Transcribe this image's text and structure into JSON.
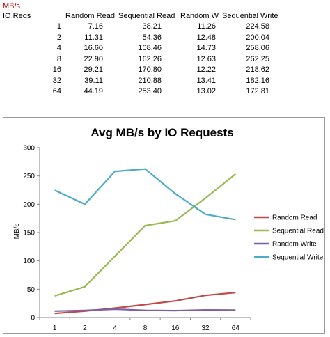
{
  "table": {
    "units_label": "MB/s",
    "header": [
      "IO Reqs",
      "Random Read",
      "Sequential Read",
      "Random Wr",
      "Sequential Write"
    ],
    "rows": [
      [
        "1",
        "7.16",
        "38.21",
        "11.26",
        "224.58"
      ],
      [
        "2",
        "11.31",
        "54.36",
        "12.48",
        "200.04"
      ],
      [
        "4",
        "16.60",
        "108.46",
        "14.73",
        "258.06"
      ],
      [
        "8",
        "22.90",
        "162.26",
        "12.63",
        "262.25"
      ],
      [
        "16",
        "29.21",
        "170.80",
        "12.22",
        "218.62"
      ],
      [
        "32",
        "39.11",
        "210.88",
        "13.41",
        "182.16"
      ],
      [
        "64",
        "44.19",
        "253.40",
        "13.02",
        "172.81"
      ]
    ]
  },
  "chart_data": {
    "type": "line",
    "title": "Avg MB/s by IO Requests",
    "xlabel": "",
    "ylabel": "MB/s",
    "categories": [
      "1",
      "2",
      "4",
      "8",
      "16",
      "32",
      "64"
    ],
    "ylim": [
      0,
      300
    ],
    "yticks": [
      "0",
      "50",
      "100",
      "150",
      "200",
      "250",
      "300"
    ],
    "grid": false,
    "legend_position": "right",
    "series": [
      {
        "name": "Random Read",
        "color": "#be4b48",
        "values": [
          7.16,
          11.31,
          16.6,
          22.9,
          29.21,
          39.11,
          44.19
        ]
      },
      {
        "name": "Sequential Read",
        "color": "#98b954",
        "values": [
          38.21,
          54.36,
          108.46,
          162.26,
          170.8,
          210.88,
          253.4
        ]
      },
      {
        "name": "Random Write",
        "color": "#7d60a0",
        "values": [
          11.26,
          12.48,
          14.73,
          12.63,
          12.22,
          13.41,
          13.02
        ]
      },
      {
        "name": "Sequential Write",
        "color": "#4aacc6",
        "values": [
          224.58,
          200.04,
          258.06,
          262.25,
          218.62,
          182.16,
          172.81
        ]
      }
    ]
  }
}
